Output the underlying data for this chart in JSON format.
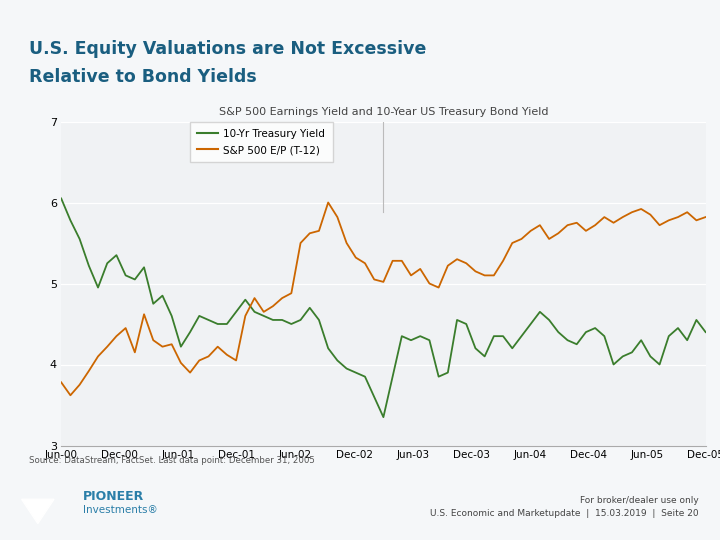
{
  "title_line1": "U.S. Equity Valuations are Not Excessive",
  "title_line2": "Relative to Bond Yields",
  "chart_title": "S&P 500 Earnings Yield and 10-Year US Treasury Bond Yield",
  "source": "Source: DataStream, FactSet. Last data point: December 31, 2005",
  "footer_right1": "For broker/dealer use only",
  "footer_right2": "U.S. Economic and Marketupdate  |  15.03.2019  |  Seite 20",
  "legend_green": "10-Yr Treasury Yield",
  "legend_orange": "S&P 500 E/P (T-12)",
  "ylim": [
    3,
    7
  ],
  "yticks": [
    3,
    4,
    5,
    6,
    7
  ],
  "top_bar_color": "#8fa0b0",
  "bg_color": "#f5f7f9",
  "footer_bg": "#c8d4de",
  "plot_bg": "#f0f2f4",
  "title_color": "#1a5e80",
  "green_color": "#3a7d2c",
  "orange_color": "#cc6600",
  "x_labels": [
    "Jun-00",
    "Dec-00",
    "Jun-01",
    "Dec-01",
    "Jun-02",
    "Dec-02",
    "Jun-03",
    "Dec-03",
    "Jun-04",
    "Dec-04",
    "Jun-05",
    "Dec-05"
  ],
  "treasury_yield": [
    6.05,
    5.78,
    5.55,
    5.22,
    4.95,
    5.25,
    5.35,
    5.1,
    5.05,
    5.2,
    4.75,
    4.85,
    4.6,
    4.22,
    4.4,
    4.6,
    4.55,
    4.5,
    4.5,
    4.65,
    4.8,
    4.65,
    4.6,
    4.55,
    4.55,
    4.5,
    4.55,
    4.7,
    4.55,
    4.2,
    4.05,
    3.95,
    3.9,
    3.85,
    3.6,
    3.35,
    3.85,
    4.35,
    4.3,
    4.35,
    4.3,
    3.85,
    3.9,
    4.55,
    4.5,
    4.2,
    4.1,
    4.35,
    4.35,
    4.2,
    4.35,
    4.5,
    4.65,
    4.55,
    4.4,
    4.3,
    4.25,
    4.4,
    4.45,
    4.35,
    4.0,
    4.1,
    4.15,
    4.3,
    4.1,
    4.0,
    4.35,
    4.45,
    4.3,
    4.55,
    4.4
  ],
  "sp500_ep": [
    3.78,
    3.62,
    3.75,
    3.92,
    4.1,
    4.22,
    4.35,
    4.45,
    4.15,
    4.62,
    4.3,
    4.22,
    4.25,
    4.02,
    3.9,
    4.05,
    4.1,
    4.22,
    4.12,
    4.05,
    4.6,
    4.82,
    4.65,
    4.72,
    4.82,
    4.88,
    5.5,
    5.62,
    5.65,
    6.0,
    5.82,
    5.5,
    5.32,
    5.25,
    5.05,
    5.02,
    5.28,
    5.28,
    5.1,
    5.18,
    5.0,
    4.95,
    5.22,
    5.3,
    5.25,
    5.15,
    5.1,
    5.1,
    5.28,
    5.5,
    5.55,
    5.65,
    5.72,
    5.55,
    5.62,
    5.72,
    5.75,
    5.65,
    5.72,
    5.82,
    5.75,
    5.82,
    5.88,
    5.92,
    5.85,
    5.72,
    5.78,
    5.82,
    5.88,
    5.78,
    5.82
  ]
}
